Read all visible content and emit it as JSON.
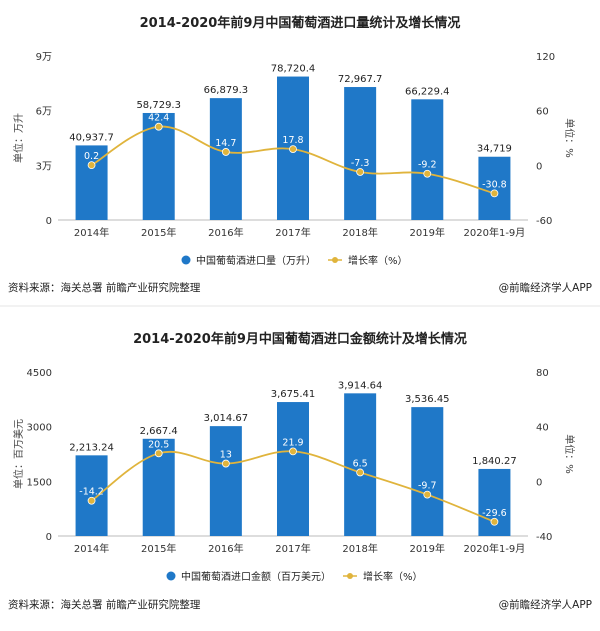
{
  "colors": {
    "bar": "#1f78c8",
    "line": "#e0b43c",
    "marker": "#e0b43c"
  },
  "source_text": "资料来源：海关总署 前瞻产业研究院整理",
  "brand_text": "@前瞻经济学人APP",
  "chart_data": [
    {
      "type": "bar+line",
      "title": "2014-2020年前9月中国葡萄酒进口量统计及增长情况",
      "categories": [
        "2014年",
        "2015年",
        "2016年",
        "2017年",
        "2018年",
        "2019年",
        "2020年1-9月"
      ],
      "series": [
        {
          "name": "中国葡萄酒进口量（万升）",
          "type": "bar",
          "values": [
            40937.7,
            58729.3,
            66879.3,
            78720.4,
            72967.7,
            66229.4,
            34719
          ],
          "labels": [
            "40,937.7",
            "58,729.3",
            "66,879.3",
            "78,720.4",
            "72,967.7",
            "66,229.4",
            "34,719"
          ]
        },
        {
          "name": "增长率（%）",
          "type": "line",
          "values": [
            0.2,
            42.4,
            14.7,
            17.8,
            -7.3,
            -9.2,
            -30.8
          ],
          "labels": [
            "0.2",
            "42.4",
            "14.7",
            "17.8",
            "-7.3",
            "-9.2",
            "-30.8"
          ]
        }
      ],
      "ylabel_left": "单位：万升",
      "ylabel_right": "单位：%",
      "yticks_left": [
        "0",
        "3万",
        "6万",
        "9万"
      ],
      "ylim_left": [
        0,
        90000
      ],
      "yticks_right": [
        "-60",
        "0",
        "60",
        "120"
      ],
      "ylim_right": [
        -60,
        120
      ],
      "legend": "bottom",
      "grid": false
    },
    {
      "type": "bar+line",
      "title": "2014-2020年前9月中国葡萄酒进口金额统计及增长情况",
      "categories": [
        "2014年",
        "2015年",
        "2016年",
        "2017年",
        "2018年",
        "2019年",
        "2020年1-9月"
      ],
      "series": [
        {
          "name": "中国葡萄酒进口金额（百万美元）",
          "type": "bar",
          "values": [
            2213.24,
            2667.4,
            3014.67,
            3675.41,
            3914.64,
            3536.45,
            1840.27
          ],
          "labels": [
            "2,213.24",
            "2,667.4",
            "3,014.67",
            "3,675.41",
            "3,914.64",
            "3,536.45",
            "1,840.27"
          ]
        },
        {
          "name": "增长率（%）",
          "type": "line",
          "values": [
            -14.2,
            20.5,
            13,
            21.9,
            6.5,
            -9.7,
            -29.6
          ],
          "labels": [
            "-14.2",
            "20.5",
            "13",
            "21.9",
            "6.5",
            "-9.7",
            "-29.6"
          ]
        }
      ],
      "ylabel_left": "单位：百万美元",
      "ylabel_right": "单位：%",
      "yticks_left": [
        "0",
        "1500",
        "3000",
        "4500"
      ],
      "ylim_left": [
        0,
        4500
      ],
      "yticks_right": [
        "-40",
        "0",
        "40",
        "80"
      ],
      "ylim_right": [
        -40,
        80
      ],
      "legend": "bottom",
      "grid": false
    }
  ]
}
